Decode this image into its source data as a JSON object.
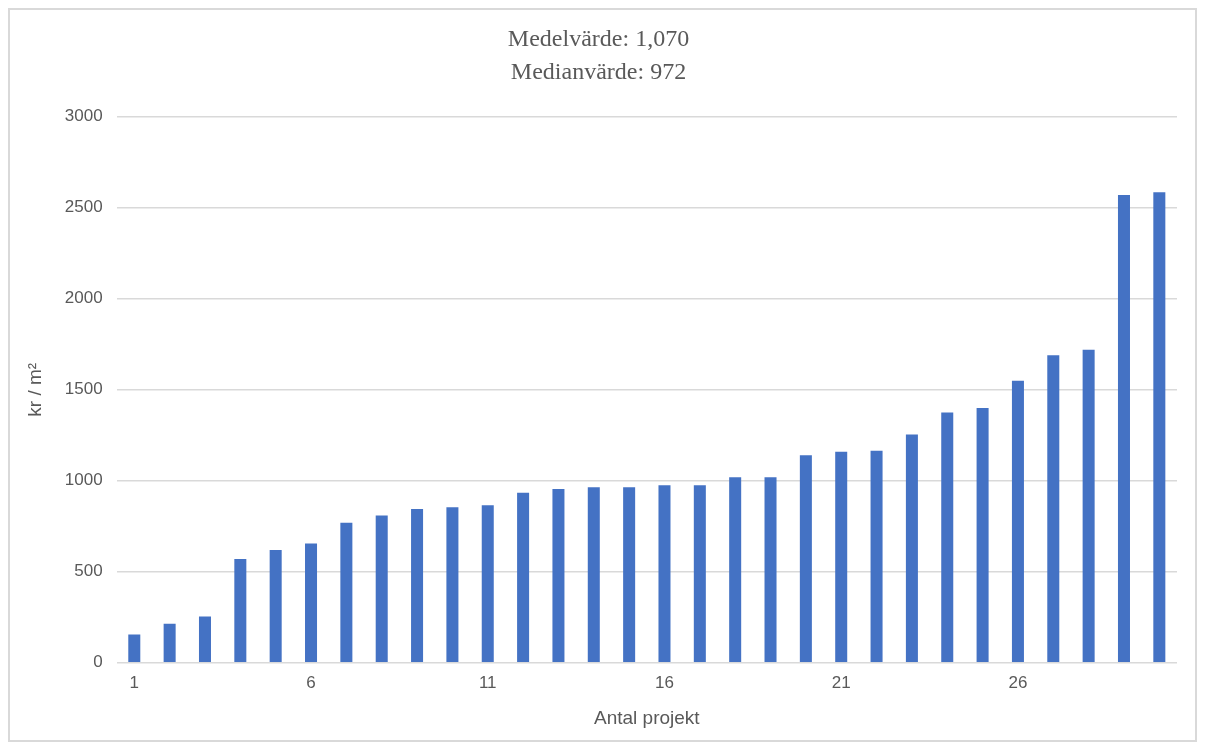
{
  "chart_data": {
    "type": "bar",
    "title": "Medelvärde: 1,070\nMedianvärde: 972",
    "xlabel": "Antal projekt",
    "ylabel": "kr / m²",
    "categories": [
      "1",
      null,
      null,
      null,
      null,
      "6",
      null,
      null,
      null,
      null,
      "11",
      null,
      null,
      null,
      null,
      "16",
      null,
      null,
      null,
      null,
      "21",
      null,
      null,
      null,
      null,
      "26",
      null,
      null,
      null,
      null
    ],
    "values": [
      155,
      215,
      255,
      570,
      620,
      655,
      770,
      810,
      845,
      855,
      865,
      935,
      955,
      965,
      965,
      975,
      975,
      1020,
      1020,
      1140,
      1160,
      1165,
      1255,
      1375,
      1400,
      1550,
      1690,
      1720,
      2570,
      2585
    ],
    "color": "#4472c4",
    "ylim": [
      0,
      3000
    ],
    "yticks": [
      0,
      500,
      1000,
      1500,
      2000,
      2500,
      3000
    ],
    "grid": "y",
    "legend": false
  }
}
